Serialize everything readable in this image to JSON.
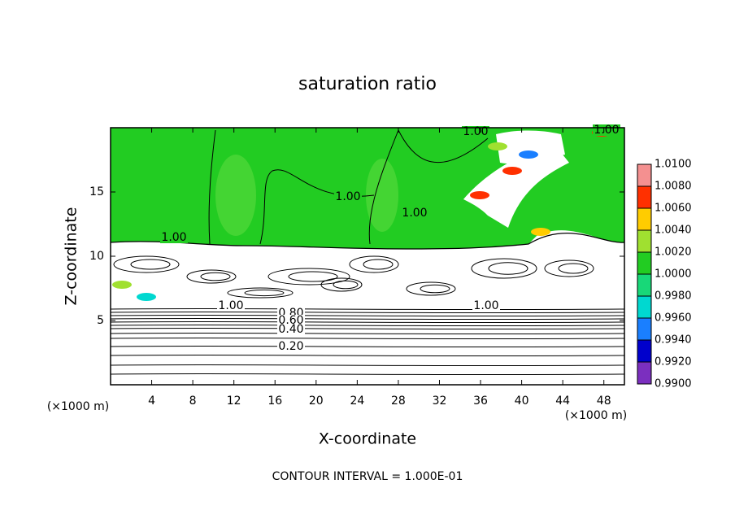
{
  "chart_data": {
    "type": "contour",
    "title": "saturation ratio",
    "xlabel": "X-coordinate",
    "ylabel": "Z-coordinate",
    "x_unit_label": "(×1000 m)",
    "y_unit_label": "(×1000 m)",
    "footnote": "CONTOUR INTERVAL = 1.000E-01",
    "xlim": [
      0,
      50
    ],
    "ylim": [
      0,
      20
    ],
    "xticks": [
      4,
      8,
      12,
      16,
      20,
      24,
      28,
      32,
      36,
      40,
      44,
      48
    ],
    "yticks": [
      5,
      10,
      15
    ],
    "contour_labels": [
      "1.00",
      "1.00",
      "1.00",
      "1.00",
      "1.00",
      "1.00",
      "1.00",
      "0.80",
      "0.60",
      "0.40",
      "0.20"
    ],
    "colorbar": {
      "ticks": [
        {
          "value": 0.99,
          "label": "0.9900"
        },
        {
          "value": 0.992,
          "label": "0.9920"
        },
        {
          "value": 0.994,
          "label": "0.9940"
        },
        {
          "value": 0.996,
          "label": "0.9960"
        },
        {
          "value": 0.998,
          "label": "0.9980"
        },
        {
          "value": 1.0,
          "label": "1.0000"
        },
        {
          "value": 1.002,
          "label": "1.0020"
        },
        {
          "value": 1.004,
          "label": "1.0040"
        },
        {
          "value": 1.006,
          "label": "1.0060"
        },
        {
          "value": 1.008,
          "label": "1.0080"
        },
        {
          "value": 1.01,
          "label": "1.0100"
        }
      ],
      "colors": [
        "#7b2fbf",
        "#0000cc",
        "#1a7fff",
        "#00d8d0",
        "#18d878",
        "#22cc22",
        "#a0e030",
        "#ffcc00",
        "#ff3000",
        "#f49090"
      ]
    }
  }
}
